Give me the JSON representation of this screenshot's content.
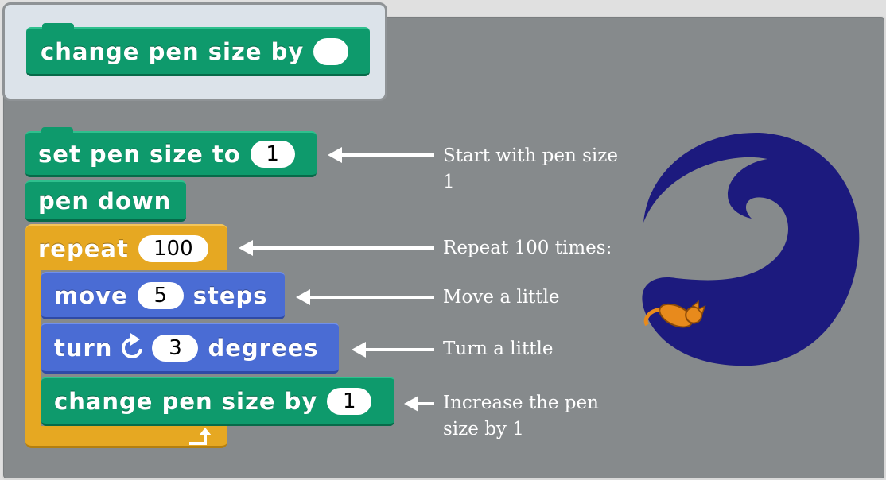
{
  "palette": {
    "block_label": "change pen size by",
    "block_value": ""
  },
  "script": {
    "set_pen_size": {
      "label": "set pen size to",
      "value": "1"
    },
    "pen_down": {
      "label": "pen down"
    },
    "repeat": {
      "label": "repeat",
      "value": "100"
    },
    "move": {
      "label": "move",
      "value": "5",
      "suffix": "steps"
    },
    "turn": {
      "label": "turn",
      "value": "3",
      "suffix": "degrees"
    },
    "change_pen_size": {
      "label": "change pen size by",
      "value": "1"
    }
  },
  "annotations": {
    "set_pen_size": "Start with pen size 1",
    "repeat": "Repeat 100 times:",
    "move": "Move a little",
    "turn": "Turn a little",
    "change_pen_size": "Increase the pen size by 1"
  },
  "colors": {
    "pen_category": "#0e9a6c",
    "motion_category": "#4a6cd4",
    "control_category": "#e6a822",
    "drawing": "#1c1a7e",
    "canvas": "#868a8c"
  },
  "icons": {
    "turn": "rotate-clockwise-icon",
    "loop": "loop-arrow-icon",
    "sprite": "cat-sprite-icon"
  }
}
